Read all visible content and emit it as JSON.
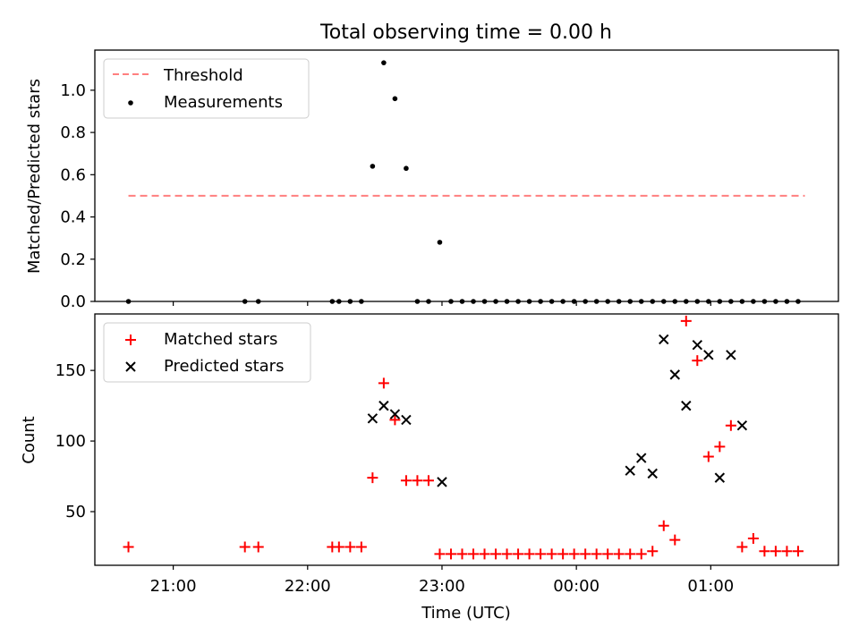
{
  "figure": {
    "title": "Total observing time = 0.00 h",
    "xlabel": "Time (UTC)",
    "xticks": [
      "21:00",
      "22:00",
      "23:00",
      "00:00",
      "01:00"
    ]
  },
  "chart_data": [
    {
      "type": "scatter",
      "title": "Total observing time = 0.00 h",
      "ylabel": "Matched/Predicted stars",
      "ylim": [
        0,
        1.19
      ],
      "yticks": [
        "0.0",
        "0.2",
        "0.4",
        "0.6",
        "0.8",
        "1.0"
      ],
      "xlim": [
        "20:25",
        "01:57"
      ],
      "legend": {
        "position": "top-left",
        "entries": [
          "Threshold",
          "Measurements"
        ]
      },
      "series": [
        {
          "name": "Threshold",
          "kind": "dashed-line",
          "color": "#ff7f7f",
          "x": [
            "20:40",
            "01:42"
          ],
          "y": [
            0.5,
            0.5
          ]
        },
        {
          "name": "Measurements",
          "kind": "dot",
          "color": "#000000",
          "x": [
            "20:40",
            "21:32",
            "21:38",
            "22:11",
            "22:14",
            "22:19",
            "22:24",
            "22:29",
            "22:34",
            "22:39",
            "22:44",
            "22:49",
            "22:54",
            "22:59",
            "23:04",
            "23:09",
            "23:14",
            "23:19",
            "23:24",
            "23:29",
            "23:34",
            "23:39",
            "23:44",
            "23:49",
            "23:54",
            "23:59",
            "00:04",
            "00:09",
            "00:14",
            "00:19",
            "00:24",
            "00:29",
            "00:34",
            "00:39",
            "00:44",
            "00:49",
            "00:54",
            "00:59",
            "01:04",
            "01:09",
            "01:14",
            "01:19",
            "01:24",
            "01:29",
            "01:34",
            "01:39"
          ],
          "y": [
            0.0,
            0.0,
            0.0,
            0.0,
            0.0,
            0.0,
            0.0,
            0.64,
            1.13,
            0.96,
            0.63,
            0.0,
            0.0,
            0.28,
            0.0,
            0.0,
            0.0,
            0.0,
            0.0,
            0.0,
            0.0,
            0.0,
            0.0,
            0.0,
            0.0,
            0.0,
            0.0,
            0.0,
            0.0,
            0.0,
            0.0,
            0.0,
            0.0,
            0.0,
            0.0,
            0.0,
            0.0,
            0.0,
            0.0,
            0.0,
            0.0,
            0.0,
            0.0,
            0.0,
            0.0,
            0.0
          ]
        }
      ]
    },
    {
      "type": "scatter",
      "ylabel": "Count",
      "ylim": [
        12,
        190
      ],
      "yticks": [
        "50",
        "100",
        "150"
      ],
      "xlim": [
        "20:25",
        "01:57"
      ],
      "xlabel": "Time (UTC)",
      "legend": {
        "position": "top-left",
        "entries": [
          "Matched stars",
          "Predicted stars"
        ]
      },
      "series": [
        {
          "name": "Matched stars",
          "kind": "plus",
          "color": "#ff0000",
          "x": [
            "20:40",
            "21:32",
            "21:38",
            "22:11",
            "22:14",
            "22:19",
            "22:24",
            "22:29",
            "22:34",
            "22:39",
            "22:44",
            "22:49",
            "22:54",
            "22:59",
            "23:04",
            "23:09",
            "23:14",
            "23:19",
            "23:24",
            "23:29",
            "23:34",
            "23:39",
            "23:44",
            "23:49",
            "23:54",
            "23:59",
            "00:04",
            "00:09",
            "00:14",
            "00:19",
            "00:24",
            "00:29",
            "00:34",
            "00:39",
            "00:44",
            "00:49",
            "00:54",
            "00:59",
            "01:04",
            "01:09",
            "01:14",
            "01:19",
            "01:24",
            "01:29",
            "01:34",
            "01:39"
          ],
          "y": [
            25,
            25,
            25,
            25,
            25,
            25,
            25,
            74,
            141,
            115,
            72,
            72,
            72,
            20,
            20,
            20,
            20,
            20,
            20,
            20,
            20,
            20,
            20,
            20,
            20,
            20,
            20,
            20,
            20,
            20,
            20,
            20,
            22,
            40,
            30,
            185,
            157,
            89,
            96,
            111,
            25,
            31,
            22,
            22,
            22,
            22
          ]
        },
        {
          "name": "Predicted stars",
          "kind": "x",
          "color": "#000000",
          "x": [
            "22:29",
            "22:34",
            "22:39",
            "22:44",
            "23:00",
            "00:24",
            "00:29",
            "00:34",
            "00:39",
            "00:44",
            "00:49",
            "00:54",
            "00:59",
            "01:04",
            "01:09",
            "01:14"
          ],
          "y": [
            116,
            125,
            119,
            115,
            71,
            79,
            88,
            77,
            172,
            147,
            125,
            168,
            161,
            74,
            161,
            111
          ]
        }
      ]
    }
  ]
}
